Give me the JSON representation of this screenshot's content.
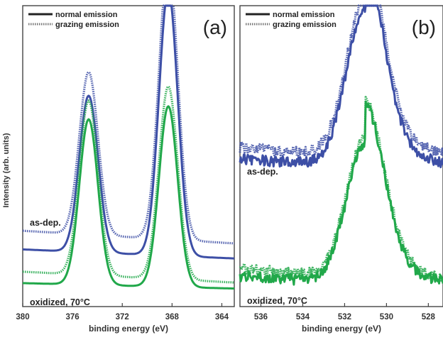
{
  "ylabel": "Intensity (arb. units)",
  "colors": {
    "as_dep": "#3d4fa6",
    "oxidized": "#21a84a",
    "axis": "#444444"
  },
  "legend": {
    "normal": "normal emission",
    "grazing": "grazing emission"
  },
  "chart_data": [
    {
      "type": "line",
      "panel_label": "(a)",
      "xlabel": "binding energy (eV)",
      "xlim": [
        380,
        363
      ],
      "x_reversed": true,
      "xticks": [
        380,
        376,
        372,
        368,
        364
      ],
      "series_labels": {
        "as_dep": "as-dep.",
        "oxidized": "oxidized, 70°C"
      },
      "legend_placement": "top-left",
      "peaks": [
        {
          "center": 374.7,
          "width": 0.75
        },
        {
          "center": 368.3,
          "width": 0.75
        }
      ],
      "series": [
        {
          "key": "as_dep",
          "style": "solid",
          "baseline": 0.16,
          "peak_heights": [
            0.52,
            0.88
          ],
          "tail": 0.05
        },
        {
          "key": "as_dep",
          "style": "dotted",
          "baseline": 0.21,
          "peak_heights": [
            0.54,
            0.92
          ],
          "tail": 0.07
        },
        {
          "key": "oxidized",
          "style": "solid",
          "baseline": 0.06,
          "peak_heights": [
            0.55,
            0.6
          ],
          "tail": 0.03
        },
        {
          "key": "oxidized",
          "style": "dotted",
          "baseline": 0.08,
          "peak_heights": [
            0.58,
            0.64
          ],
          "tail": 0.06
        }
      ]
    },
    {
      "type": "line",
      "panel_label": "(b)",
      "xlabel": "binding energy (eV)",
      "xlim": [
        537,
        527.3
      ],
      "x_reversed": true,
      "xticks": [
        536,
        534,
        532,
        530,
        528
      ],
      "series_labels": {
        "as_dep": "as-dep.",
        "oxidized": "oxidized, 70°C"
      },
      "legend_placement": "top-left",
      "peaks": [
        {
          "center": 531.0,
          "width": 0.9
        }
      ],
      "series": [
        {
          "key": "as_dep",
          "style": "solid",
          "baseline": 0.45,
          "peak_heights": [
            0.53
          ],
          "tail": 0.1
        },
        {
          "key": "as_dep",
          "style": "dotted",
          "baseline": 0.48,
          "peak_heights": [
            0.53
          ],
          "tail": 0.12
        },
        {
          "key": "oxidized",
          "style": "solid",
          "baseline": 0.06,
          "peak_heights": [
            0.47
          ],
          "tail": 0.1
        },
        {
          "key": "oxidized",
          "style": "dotted",
          "baseline": 0.07,
          "peak_heights": [
            0.47
          ],
          "tail": 0.14
        }
      ]
    }
  ]
}
